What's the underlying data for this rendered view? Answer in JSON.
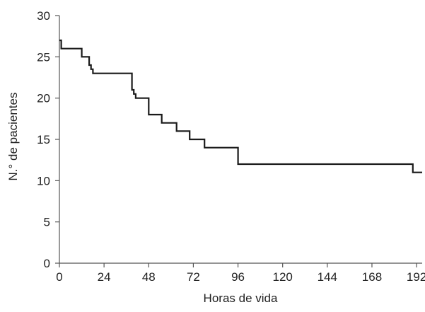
{
  "chart_data": {
    "type": "line",
    "step": true,
    "title": "",
    "xlabel": "Horas de vida",
    "ylabel": "N.° de pacientes",
    "xlim": [
      0,
      195
    ],
    "ylim": [
      0,
      30
    ],
    "xticks": [
      0,
      24,
      48,
      72,
      96,
      120,
      144,
      168,
      192
    ],
    "yticks": [
      0,
      5,
      10,
      15,
      20,
      25,
      30
    ],
    "grid": false,
    "legend": "none",
    "line_color": "#1a1a1a",
    "series": [
      {
        "x": [
          0,
          1,
          12,
          16,
          17,
          18,
          39,
          40,
          41,
          45,
          48,
          55,
          63,
          70,
          78,
          96,
          190,
          195
        ],
        "values": [
          27,
          26,
          25,
          24,
          23.5,
          23,
          21,
          20.5,
          20,
          20,
          18,
          17,
          16,
          15,
          14,
          12,
          11,
          11
        ]
      }
    ]
  }
}
